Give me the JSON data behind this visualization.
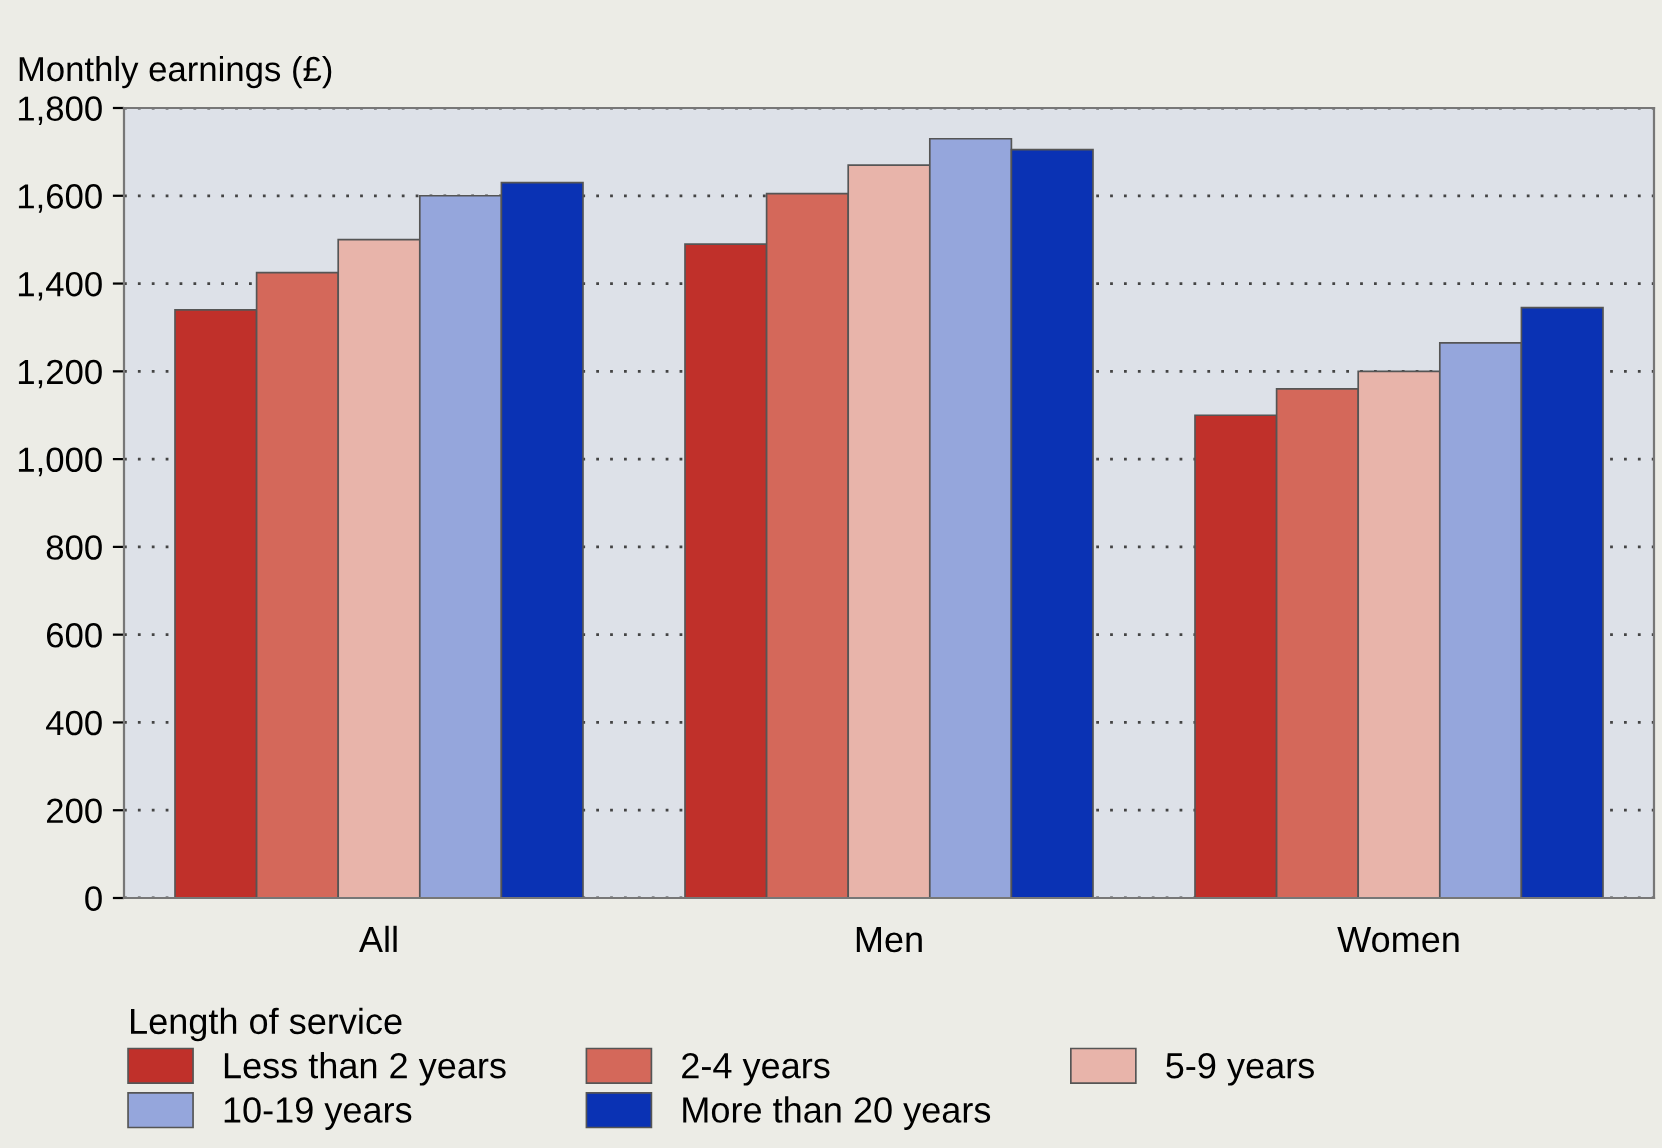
{
  "chart_data": {
    "type": "bar",
    "ylabel": "Monthly earnings (£)",
    "legend_title": "Length of service",
    "categories": [
      "All",
      "Men",
      "Women"
    ],
    "series": [
      {
        "name": "Less than 2 years",
        "color": "#c0302a",
        "values": [
          1340,
          1490,
          1100
        ]
      },
      {
        "name": "2-4 years",
        "color": "#d4685a",
        "values": [
          1425,
          1605,
          1160
        ]
      },
      {
        "name": "5-9 years",
        "color": "#e8b4aa",
        "values": [
          1500,
          1670,
          1200
        ]
      },
      {
        "name": "10-19 years",
        "color": "#95a6dc",
        "values": [
          1600,
          1730,
          1265
        ]
      },
      {
        "name": "More than 20 years",
        "color": "#0a32b4",
        "values": [
          1630,
          1705,
          1345
        ]
      }
    ],
    "ylim": [
      0,
      1800
    ],
    "yticks": [
      0,
      {
        "value": 200,
        "label": "200"
      },
      {
        "value": 400,
        "label": "400"
      },
      {
        "value": 600,
        "label": "600"
      },
      {
        "value": 800,
        "label": "800"
      },
      {
        "value": 1000,
        "label": "1,000"
      },
      {
        "value": 1200,
        "label": "1,200"
      },
      {
        "value": 1400,
        "label": "1,400"
      },
      {
        "value": 1600,
        "label": "1,600"
      },
      {
        "value": 1800,
        "label": "1,800"
      }
    ],
    "grid": "y",
    "legend": "bottom"
  }
}
